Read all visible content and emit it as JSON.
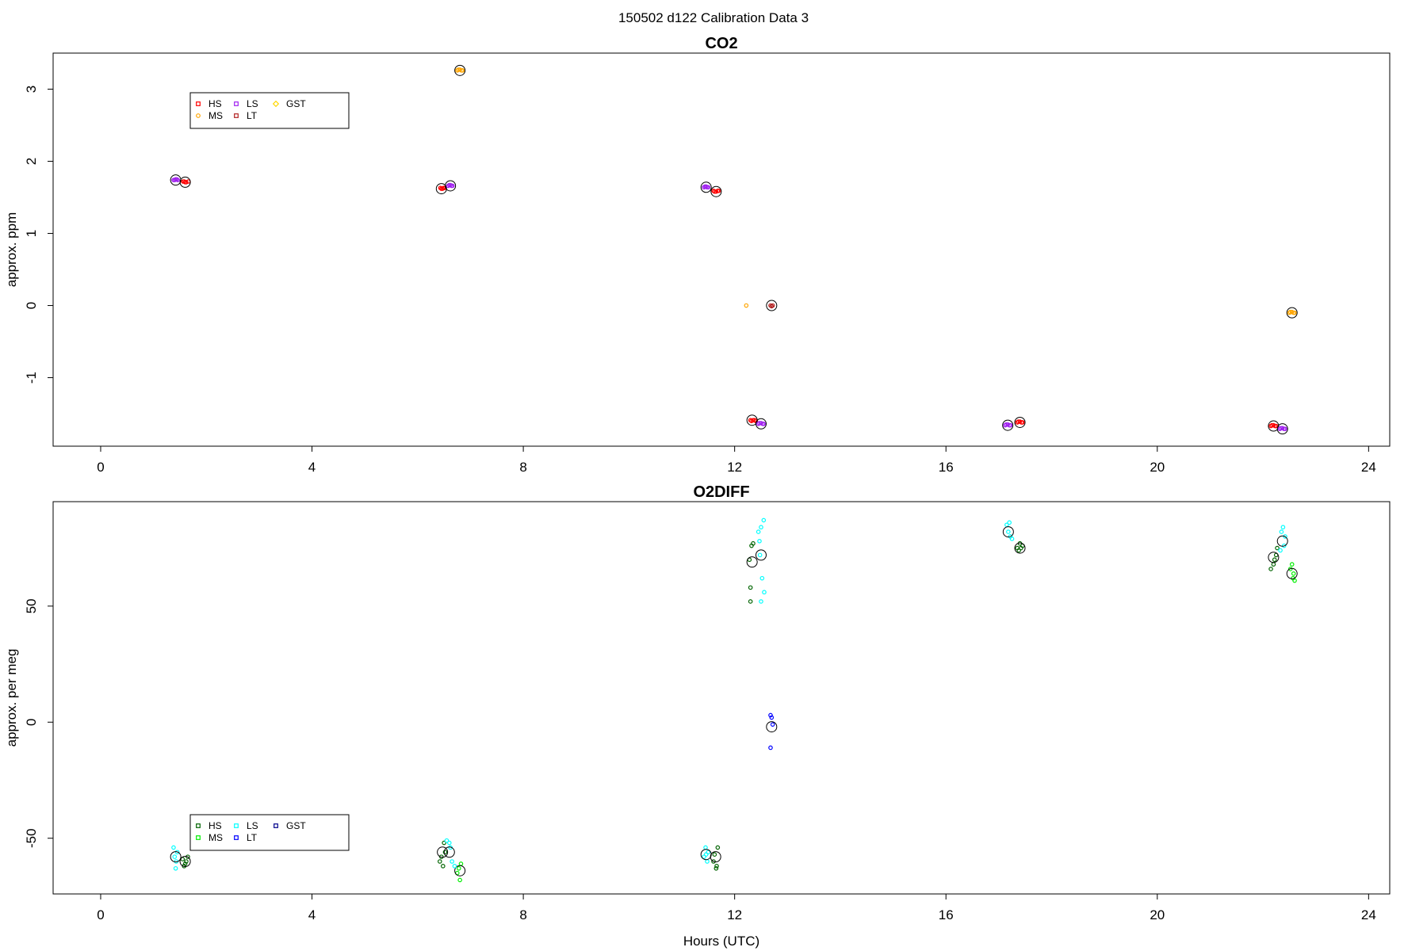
{
  "figure": {
    "title": "150502   d122   Calibration Data 3"
  },
  "chart_data": [
    {
      "type": "scatter",
      "title": "CO2",
      "xlabel": "",
      "ylabel": "approx. ppm",
      "xlim": [
        -0.9,
        24.4
      ],
      "ylim": [
        -1.95,
        3.5
      ],
      "xticks": [
        0,
        4,
        8,
        12,
        16,
        20,
        24
      ],
      "yticks": [
        -1,
        0,
        1,
        2,
        3
      ],
      "legend": {
        "entries": [
          {
            "label": "HS",
            "color": "#ff0000",
            "marker": "square"
          },
          {
            "label": "MS",
            "color": "#ffa500",
            "marker": "circle"
          },
          {
            "label": "LS",
            "color": "#a020f0",
            "marker": "square"
          },
          {
            "label": "LT",
            "color": "#b22222",
            "marker": "square"
          },
          {
            "label": "GST",
            "color": "#ffd700",
            "marker": "diamond"
          }
        ]
      },
      "series": [
        {
          "name": "HS",
          "color": "#ff0000",
          "points": [
            [
              1.58,
              1.72
            ],
            [
              1.62,
              1.71
            ],
            [
              1.66,
              1.72
            ],
            [
              1.6,
              1.71
            ],
            [
              1.56,
              1.72
            ],
            [
              6.43,
              1.63
            ],
            [
              6.47,
              1.62
            ],
            [
              6.51,
              1.63
            ],
            [
              6.45,
              1.62
            ],
            [
              6.49,
              1.63
            ],
            [
              11.6,
              1.59
            ],
            [
              11.65,
              1.58
            ],
            [
              11.7,
              1.59
            ],
            [
              11.62,
              1.58
            ],
            [
              11.68,
              1.59
            ],
            [
              12.3,
              -1.59
            ],
            [
              12.35,
              -1.59
            ],
            [
              12.4,
              -1.6
            ],
            [
              12.32,
              -1.6
            ],
            [
              12.38,
              -1.59
            ],
            [
              17.35,
              -1.62
            ],
            [
              17.4,
              -1.61
            ],
            [
              17.45,
              -1.62
            ],
            [
              17.37,
              -1.61
            ],
            [
              17.43,
              -1.62
            ],
            [
              22.15,
              -1.67
            ],
            [
              22.2,
              -1.66
            ],
            [
              22.25,
              -1.67
            ],
            [
              22.17,
              -1.66
            ],
            [
              22.23,
              -1.67
            ]
          ],
          "means": [
            [
              1.6,
              1.71
            ],
            [
              6.45,
              1.62
            ],
            [
              11.65,
              1.58
            ],
            [
              12.33,
              -1.59
            ],
            [
              17.4,
              -1.62
            ],
            [
              22.2,
              -1.67
            ]
          ]
        },
        {
          "name": "MS",
          "color": "#ffa500",
          "points": [
            [
              6.75,
              3.26
            ],
            [
              6.8,
              3.27
            ],
            [
              6.85,
              3.26
            ],
            [
              6.77,
              3.27
            ],
            [
              6.83,
              3.26
            ],
            [
              12.22,
              0.0
            ],
            [
              22.5,
              -0.1
            ],
            [
              22.55,
              -0.09
            ],
            [
              22.6,
              -0.1
            ],
            [
              22.52,
              -0.09
            ],
            [
              22.58,
              -0.1
            ]
          ],
          "means": [
            [
              6.8,
              3.26
            ],
            [
              22.55,
              -0.1
            ]
          ]
        },
        {
          "name": "LS",
          "color": "#a020f0",
          "points": [
            [
              1.38,
              1.74
            ],
            [
              1.42,
              1.75
            ],
            [
              1.46,
              1.74
            ],
            [
              1.4,
              1.74
            ],
            [
              1.44,
              1.75
            ],
            [
              6.58,
              1.66
            ],
            [
              6.62,
              1.67
            ],
            [
              6.66,
              1.66
            ],
            [
              6.6,
              1.67
            ],
            [
              6.64,
              1.66
            ],
            [
              11.42,
              1.64
            ],
            [
              11.46,
              1.65
            ],
            [
              11.5,
              1.64
            ],
            [
              11.44,
              1.65
            ],
            [
              11.48,
              1.64
            ],
            [
              12.45,
              -1.64
            ],
            [
              12.5,
              -1.63
            ],
            [
              12.55,
              -1.64
            ],
            [
              12.47,
              -1.63
            ],
            [
              12.53,
              -1.64
            ],
            [
              17.12,
              -1.66
            ],
            [
              17.17,
              -1.65
            ],
            [
              17.22,
              -1.66
            ],
            [
              17.14,
              -1.65
            ],
            [
              17.2,
              -1.66
            ],
            [
              22.32,
              -1.71
            ],
            [
              22.37,
              -1.7
            ],
            [
              22.42,
              -1.71
            ],
            [
              22.34,
              -1.7
            ],
            [
              22.4,
              -1.71
            ]
          ],
          "means": [
            [
              1.42,
              1.74
            ],
            [
              6.62,
              1.66
            ],
            [
              11.46,
              1.64
            ],
            [
              12.5,
              -1.64
            ],
            [
              17.17,
              -1.66
            ],
            [
              22.37,
              -1.71
            ]
          ]
        },
        {
          "name": "LT",
          "color": "#b22222",
          "points": [
            [
              12.68,
              0.0
            ],
            [
              12.72,
              0.0
            ],
            [
              12.7,
              -0.01
            ]
          ],
          "means": [
            [
              12.7,
              0.0
            ]
          ]
        },
        {
          "name": "GST",
          "color": "#ffd700",
          "points": [],
          "means": []
        }
      ]
    },
    {
      "type": "scatter",
      "title": "O2DIFF",
      "xlabel": "Hours (UTC)",
      "ylabel": "approx. per meg",
      "xlim": [
        -0.9,
        24.4
      ],
      "ylim": [
        -74,
        95
      ],
      "xticks": [
        0,
        4,
        8,
        12,
        16,
        20,
        24
      ],
      "yticks": [
        -50,
        0,
        50
      ],
      "legend": {
        "entries": [
          {
            "label": "HS",
            "color": "#006400",
            "marker": "square"
          },
          {
            "label": "MS",
            "color": "#00ee00",
            "marker": "square"
          },
          {
            "label": "LS",
            "color": "#00ffff",
            "marker": "square"
          },
          {
            "label": "LT",
            "color": "#0000ff",
            "marker": "square"
          },
          {
            "label": "GST",
            "color": "#00008b",
            "marker": "square"
          }
        ]
      },
      "series": [
        {
          "name": "HS",
          "color": "#006400",
          "points": [
            [
              1.55,
              -59
            ],
            [
              1.6,
              -61
            ],
            [
              1.65,
              -58
            ],
            [
              1.58,
              -62
            ],
            [
              1.62,
              -60
            ],
            [
              6.45,
              -58
            ],
            [
              6.5,
              -52
            ],
            [
              6.42,
              -60
            ],
            [
              6.48,
              -62
            ],
            [
              6.52,
              -56
            ],
            [
              11.6,
              -60
            ],
            [
              11.65,
              -63
            ],
            [
              11.68,
              -54
            ],
            [
              11.62,
              -57
            ],
            [
              11.66,
              -62
            ],
            [
              12.3,
              58
            ],
            [
              12.35,
              77
            ],
            [
              12.3,
              52
            ],
            [
              12.32,
              76
            ],
            [
              12.28,
              70
            ],
            [
              17.35,
              75
            ],
            [
              17.4,
              77
            ],
            [
              17.45,
              76
            ],
            [
              17.38,
              74
            ],
            [
              17.42,
              75
            ],
            [
              22.2,
              68
            ],
            [
              22.25,
              72
            ],
            [
              22.15,
              66
            ],
            [
              22.22,
              70
            ],
            [
              22.27,
              75
            ]
          ],
          "means": [
            [
              1.6,
              -60
            ],
            [
              6.47,
              -56
            ],
            [
              11.64,
              -58
            ],
            [
              12.33,
              69
            ],
            [
              17.4,
              75
            ],
            [
              22.2,
              71
            ]
          ]
        },
        {
          "name": "MS",
          "color": "#00ee00",
          "points": [
            [
              6.8,
              -68
            ],
            [
              6.78,
              -63
            ],
            [
              6.82,
              -61
            ],
            [
              6.75,
              -65
            ],
            [
              22.55,
              68
            ],
            [
              22.6,
              61
            ],
            [
              22.58,
              64
            ],
            [
              22.52,
              66
            ],
            [
              22.57,
              62
            ]
          ],
          "means": [
            [
              6.8,
              -64
            ],
            [
              22.55,
              64
            ]
          ]
        },
        {
          "name": "LS",
          "color": "#00ffff",
          "points": [
            [
              1.38,
              -54
            ],
            [
              1.42,
              -63
            ],
            [
              1.45,
              -56
            ],
            [
              1.4,
              -58
            ],
            [
              1.43,
              -60
            ],
            [
              6.55,
              -51
            ],
            [
              6.6,
              -52
            ],
            [
              6.65,
              -60
            ],
            [
              6.7,
              -62
            ],
            [
              6.62,
              -54
            ],
            [
              11.45,
              -54
            ],
            [
              11.5,
              -56
            ],
            [
              11.42,
              -58
            ],
            [
              11.48,
              -60
            ],
            [
              11.46,
              -57
            ],
            [
              12.45,
              82
            ],
            [
              12.5,
              84
            ],
            [
              12.55,
              87
            ],
            [
              12.48,
              72
            ],
            [
              12.52,
              62
            ],
            [
              12.56,
              56
            ],
            [
              12.5,
              52
            ],
            [
              12.47,
              78
            ],
            [
              17.15,
              85
            ],
            [
              17.2,
              86
            ],
            [
              17.25,
              79
            ],
            [
              17.18,
              82
            ],
            [
              17.22,
              80
            ],
            [
              22.35,
              82
            ],
            [
              22.4,
              76
            ],
            [
              22.42,
              80
            ],
            [
              22.38,
              84
            ],
            [
              22.33,
              74
            ]
          ],
          "means": [
            [
              1.42,
              -58
            ],
            [
              6.6,
              -56
            ],
            [
              11.46,
              -57
            ],
            [
              12.5,
              72
            ],
            [
              17.18,
              82
            ],
            [
              22.37,
              78
            ]
          ]
        },
        {
          "name": "LT",
          "color": "#0000ff",
          "points": [
            [
              12.68,
              3
            ],
            [
              12.7,
              2
            ],
            [
              12.72,
              -1
            ],
            [
              12.68,
              -11
            ]
          ],
          "means": [
            [
              12.7,
              -2
            ]
          ]
        },
        {
          "name": "GST",
          "color": "#00008b",
          "points": [],
          "means": []
        }
      ]
    }
  ]
}
